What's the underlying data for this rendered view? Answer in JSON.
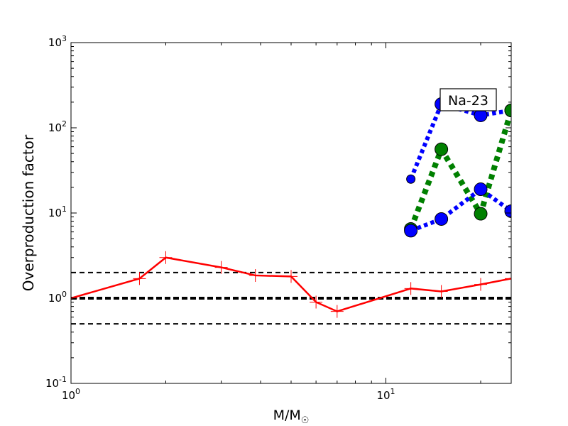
{
  "chart_data": {
    "type": "line",
    "x_scale": "log",
    "y_scale": "log",
    "xlim": [
      1,
      25
    ],
    "ylim": [
      0.1,
      1000
    ],
    "xlabel": "M/M",
    "xlabel_symbol": "☉",
    "ylabel": "Overproduction factor",
    "annotation": "Na-23",
    "x_ticks": [
      {
        "value": 1,
        "base": "10",
        "exp": "0"
      },
      {
        "value": 10,
        "base": "10",
        "exp": "1"
      }
    ],
    "y_ticks": [
      {
        "value": 0.1,
        "base": "10",
        "exp": "-1"
      },
      {
        "value": 1,
        "base": "10",
        "exp": "0"
      },
      {
        "value": 10,
        "base": "10",
        "exp": "1"
      },
      {
        "value": 100,
        "base": "10",
        "exp": "2"
      },
      {
        "value": 1000,
        "base": "10",
        "exp": "3"
      }
    ],
    "reference_lines": [
      {
        "y": 2,
        "style": "dashed",
        "weight": "thin"
      },
      {
        "y": 1,
        "style": "dashed",
        "weight": "thick"
      },
      {
        "y": 0.5,
        "style": "dashed",
        "weight": "thin"
      }
    ],
    "series": [
      {
        "color": "#ff0000",
        "style": "solid-with-plus-markers",
        "x": [
          1,
          1.65,
          2,
          3,
          3.85,
          5,
          6,
          7,
          12,
          15,
          20,
          25
        ],
        "y": [
          1.0,
          1.7,
          3.0,
          2.3,
          1.85,
          1.8,
          0.9,
          0.7,
          1.3,
          1.2,
          1.45,
          1.7
        ]
      },
      {
        "color": "#0000ff",
        "style": "dotted-with-circle-markers",
        "x": [
          12,
          15,
          20,
          25
        ],
        "y": [
          25,
          190,
          140,
          160
        ]
      },
      {
        "color": "#008000",
        "style": "dotted-with-circle-markers",
        "x": [
          12,
          15,
          20,
          25
        ],
        "y": [
          6.5,
          56,
          9.8,
          160
        ]
      },
      {
        "color": "#0000ff",
        "style": "dotted-with-circle-markers",
        "x": [
          12,
          15,
          20,
          25
        ],
        "y": [
          6.2,
          8.5,
          19,
          10.5
        ]
      }
    ]
  }
}
